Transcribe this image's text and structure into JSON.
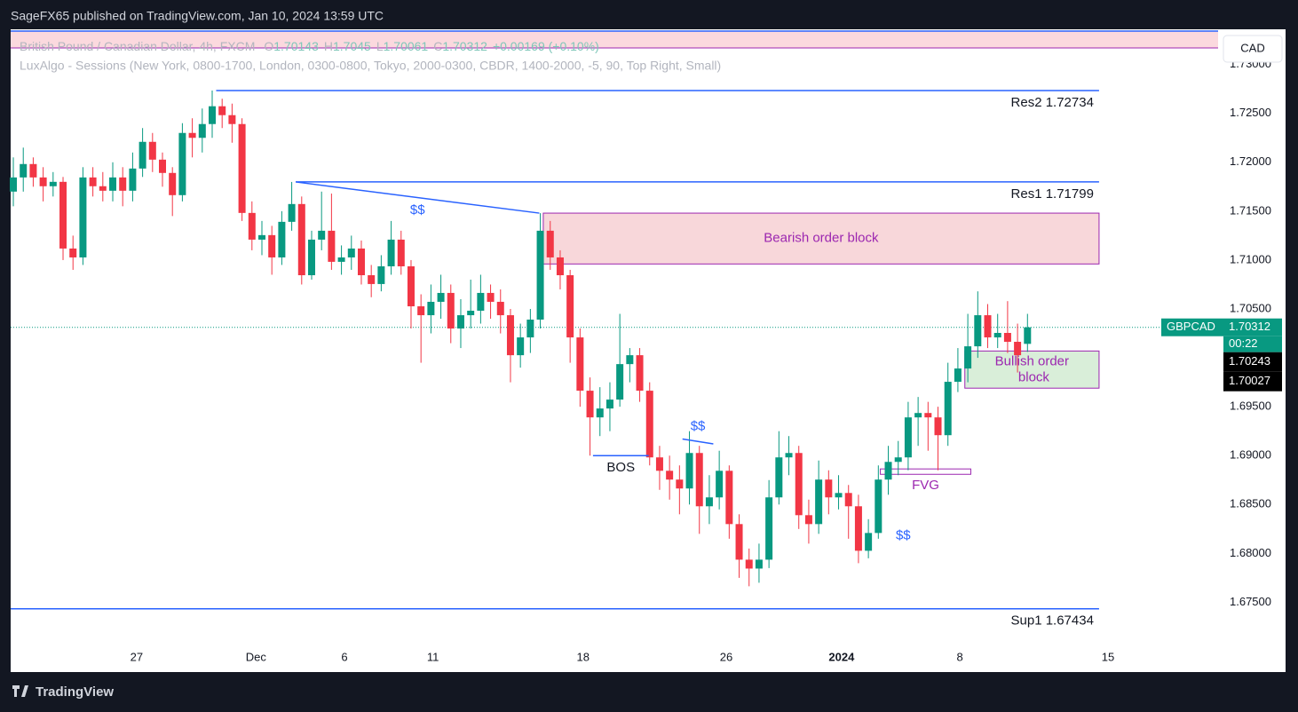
{
  "header": {
    "published": "SageFX65 published on TradingView.com, Jan 10, 2024 13:59 UTC"
  },
  "footer": {
    "brand": "TradingView"
  },
  "currency_button": "CAD",
  "chart_data": {
    "type": "candlestick",
    "symbol_legend": "British Pound / Canadian Dollar, 4h, FXCM",
    "ohlc_keys": [
      "O",
      "H",
      "L",
      "C"
    ],
    "change_text": "+0.00169 (+0.10%)",
    "indicator_legend": "LuxAlgo - Sessions (New York, 0800-1700, London, 0300-0800, Tokyo, 2000-0300, CBDR, 1400-2000, -5, 90, Top Right, Small)",
    "up_color": "#089981",
    "down_color": "#f23645",
    "ohlc": [
      [
        1.717,
        1.7205,
        1.7155,
        1.71845
      ],
      [
        1.71845,
        1.7215,
        1.717,
        1.71982
      ],
      [
        1.71982,
        1.7205,
        1.7175,
        1.71845
      ],
      [
        1.71845,
        1.7195,
        1.716,
        1.71755
      ],
      [
        1.71755,
        1.719,
        1.7165,
        1.718
      ],
      [
        1.718,
        1.7185,
        1.71,
        1.71118
      ],
      [
        1.71118,
        1.7125,
        1.709,
        1.71027
      ],
      [
        1.71027,
        1.7195,
        1.7095,
        1.71845
      ],
      [
        1.71845,
        1.7195,
        1.7165,
        1.71755
      ],
      [
        1.71755,
        1.719,
        1.716,
        1.71709
      ],
      [
        1.71709,
        1.72,
        1.716,
        1.71845
      ],
      [
        1.71845,
        1.7195,
        1.7155,
        1.71709
      ],
      [
        1.71709,
        1.721,
        1.716,
        1.71936
      ],
      [
        1.71936,
        1.7235,
        1.7185,
        1.72209
      ],
      [
        1.72209,
        1.723,
        1.719,
        1.72027
      ],
      [
        1.72027,
        1.721,
        1.7175,
        1.71891
      ],
      [
        1.71891,
        1.7195,
        1.7145,
        1.71664
      ],
      [
        1.71664,
        1.724,
        1.716,
        1.723
      ],
      [
        1.723,
        1.7245,
        1.7205,
        1.7225
      ],
      [
        1.7225,
        1.7255,
        1.721,
        1.72391
      ],
      [
        1.72391,
        1.72734,
        1.7225,
        1.72573
      ],
      [
        1.72573,
        1.7265,
        1.7235,
        1.72482
      ],
      [
        1.72482,
        1.726,
        1.722,
        1.72391
      ],
      [
        1.72391,
        1.7245,
        1.714,
        1.71482
      ],
      [
        1.71482,
        1.716,
        1.711,
        1.71209
      ],
      [
        1.71209,
        1.714,
        1.7105,
        1.71255
      ],
      [
        1.71255,
        1.7135,
        1.7085,
        1.71027
      ],
      [
        1.71027,
        1.715,
        1.7095,
        1.71391
      ],
      [
        1.71391,
        1.71799,
        1.713,
        1.71573
      ],
      [
        1.71573,
        1.7165,
        1.7075,
        1.70845
      ],
      [
        1.70845,
        1.713,
        1.708,
        1.71209
      ],
      [
        1.71209,
        1.717,
        1.711,
        1.713
      ],
      [
        1.713,
        1.7168,
        1.709,
        1.70982
      ],
      [
        1.70982,
        1.7115,
        1.7085,
        1.71027
      ],
      [
        1.71027,
        1.7125,
        1.709,
        1.71118
      ],
      [
        1.71118,
        1.712,
        1.7075,
        1.70845
      ],
      [
        1.70845,
        1.7095,
        1.7062,
        1.70755
      ],
      [
        1.70755,
        1.7105,
        1.7068,
        1.70936
      ],
      [
        1.70936,
        1.714,
        1.7085,
        1.71209
      ],
      [
        1.71209,
        1.713,
        1.7085,
        1.70936
      ],
      [
        1.70936,
        1.71,
        1.703,
        1.70527
      ],
      [
        1.70527,
        1.7065,
        1.6995,
        1.70436
      ],
      [
        1.70436,
        1.7075,
        1.7025,
        1.70573
      ],
      [
        1.70573,
        1.7085,
        1.704,
        1.70664
      ],
      [
        1.70664,
        1.7075,
        1.7015,
        1.703
      ],
      [
        1.703,
        1.706,
        1.701,
        1.70436
      ],
      [
        1.70436,
        1.708,
        1.703,
        1.70482
      ],
      [
        1.70482,
        1.7085,
        1.7035,
        1.70664
      ],
      [
        1.70664,
        1.7075,
        1.704,
        1.70573
      ],
      [
        1.70573,
        1.707,
        1.7025,
        1.70436
      ],
      [
        1.70436,
        1.705,
        1.6975,
        1.70027
      ],
      [
        1.70027,
        1.7035,
        1.699,
        1.70209
      ],
      [
        1.70209,
        1.705,
        1.7005,
        1.70391
      ],
      [
        1.70391,
        1.7148,
        1.703,
        1.713
      ],
      [
        1.713,
        1.714,
        1.709,
        1.71027
      ],
      [
        1.71027,
        1.711,
        1.707,
        1.70845
      ],
      [
        1.70845,
        1.709,
        1.6995,
        1.70209
      ],
      [
        1.70209,
        1.703,
        1.695,
        1.69664
      ],
      [
        1.69664,
        1.698,
        1.69,
        1.69391
      ],
      [
        1.69391,
        1.697,
        1.692,
        1.69482
      ],
      [
        1.69482,
        1.6975,
        1.6925,
        1.69573
      ],
      [
        1.69573,
        1.7045,
        1.695,
        1.69936
      ],
      [
        1.69936,
        1.701,
        1.6975,
        1.70027
      ],
      [
        1.70027,
        1.701,
        1.6955,
        1.69664
      ],
      [
        1.69664,
        1.6975,
        1.689,
        1.68982
      ],
      [
        1.68982,
        1.691,
        1.6865,
        1.68845
      ],
      [
        1.68845,
        1.69,
        1.6855,
        1.68755
      ],
      [
        1.68755,
        1.689,
        1.684,
        1.68664
      ],
      [
        1.68664,
        1.6925,
        1.685,
        1.69027
      ],
      [
        1.69027,
        1.691,
        1.682,
        1.68482
      ],
      [
        1.68482,
        1.688,
        1.683,
        1.68573
      ],
      [
        1.68573,
        1.6905,
        1.6845,
        1.68845
      ],
      [
        1.68845,
        1.689,
        1.6815,
        1.683
      ],
      [
        1.683,
        1.684,
        1.6775,
        1.67936
      ],
      [
        1.67936,
        1.6805,
        1.67664,
        1.67845
      ],
      [
        1.67845,
        1.681,
        1.677,
        1.67936
      ],
      [
        1.67936,
        1.6875,
        1.6785,
        1.68573
      ],
      [
        1.68573,
        1.6925,
        1.685,
        1.68982
      ],
      [
        1.68982,
        1.692,
        1.688,
        1.69027
      ],
      [
        1.69027,
        1.691,
        1.6825,
        1.68391
      ],
      [
        1.68391,
        1.6855,
        1.681,
        1.683
      ],
      [
        1.683,
        1.6895,
        1.682,
        1.68755
      ],
      [
        1.68755,
        1.6885,
        1.684,
        1.68573
      ],
      [
        1.68573,
        1.688,
        1.6845,
        1.68618
      ],
      [
        1.68618,
        1.687,
        1.6815,
        1.68482
      ],
      [
        1.68482,
        1.686,
        1.679,
        1.68027
      ],
      [
        1.68027,
        1.6835,
        1.6795,
        1.68209
      ],
      [
        1.68209,
        1.689,
        1.6815,
        1.68755
      ],
      [
        1.68755,
        1.691,
        1.686,
        1.68936
      ],
      [
        1.68936,
        1.6915,
        1.688,
        1.68982
      ],
      [
        1.68982,
        1.6955,
        1.6885,
        1.69391
      ],
      [
        1.69391,
        1.696,
        1.691,
        1.69436
      ],
      [
        1.69436,
        1.6955,
        1.6905,
        1.69391
      ],
      [
        1.69391,
        1.695,
        1.6885,
        1.69209
      ],
      [
        1.69209,
        1.6995,
        1.691,
        1.69755
      ],
      [
        1.69755,
        1.701,
        1.6965,
        1.69891
      ],
      [
        1.69891,
        1.7045,
        1.6975,
        1.70118
      ],
      [
        1.70118,
        1.7068,
        1.7,
        1.70436
      ],
      [
        1.70436,
        1.7055,
        1.701,
        1.70209
      ],
      [
        1.70209,
        1.7045,
        1.701,
        1.70255
      ],
      [
        1.70255,
        1.7058,
        1.7005,
        1.70164
      ],
      [
        1.70164,
        1.7035,
        1.6985,
        1.70027
      ],
      [
        1.70143,
        1.7045,
        1.70061,
        1.70312
      ]
    ],
    "xlim": [
      -0.27,
      120.1
    ],
    "ylim": [
      1.6705,
      1.7336
    ],
    "xticks": [
      {
        "value": 12.4,
        "label": "27"
      },
      {
        "value": 24.4,
        "label": "Dec"
      },
      {
        "value": 33.3,
        "label": "6"
      },
      {
        "value": 42.2,
        "label": "11"
      },
      {
        "value": 57.3,
        "label": "18"
      },
      {
        "value": 71.7,
        "label": "26"
      },
      {
        "value": 83.3,
        "label": "2024"
      },
      {
        "value": 95.2,
        "label": "8"
      },
      {
        "value": 110.1,
        "label": "15"
      }
    ],
    "bold_xtick": "2024",
    "yticks": [
      {
        "value": 1.675,
        "label": "1.67500"
      },
      {
        "value": 1.68,
        "label": "1.68000"
      },
      {
        "value": 1.685,
        "label": "1.68500"
      },
      {
        "value": 1.69,
        "label": "1.69000"
      },
      {
        "value": 1.695,
        "label": "1.69500"
      },
      {
        "value": 1.7,
        "label": "1.70000"
      },
      {
        "value": 1.705,
        "label": "1.70500"
      },
      {
        "value": 1.71,
        "label": "1.71000"
      },
      {
        "value": 1.715,
        "label": "1.71500"
      },
      {
        "value": 1.72,
        "label": "1.72000"
      },
      {
        "value": 1.725,
        "label": "1.72500"
      },
      {
        "value": 1.73,
        "label": "1.73000"
      }
    ],
    "last_price": {
      "name": "GBPCAD",
      "value": 1.70312,
      "countdown": "00:22",
      "color": "#089981"
    },
    "price_tags": [
      {
        "value": 1.70243,
        "label": "1.70243"
      },
      {
        "value": 1.70027,
        "label": "1.70027"
      }
    ],
    "levels": [
      {
        "label": "Res2 1.72734",
        "value": 1.72734,
        "from": 20.4,
        "to": 109.2
      },
      {
        "label": "Res1 1.71799",
        "value": 1.71799,
        "from": 28.4,
        "to": 109.2
      },
      {
        "label": "Sup1 1.67434",
        "value": 1.67434,
        "from": -0.27,
        "to": 109.2
      }
    ],
    "level_color": "#2962ff",
    "boxes": [
      {
        "label": "Bearish order block",
        "top": 1.7148,
        "bottom": 1.7096,
        "from": 53.3,
        "to": 109.2,
        "fill": "#f8d7da",
        "stroke": "#9c27b0"
      },
      {
        "label": "Bullish order block",
        "top": 1.7007,
        "bottom": 1.6969,
        "from": 95.7,
        "to": 109.2,
        "fill": "#d9eed9",
        "stroke": "#9c27b0"
      },
      {
        "label": "FVG",
        "top": 1.68864,
        "bottom": 1.68809,
        "from": 87.2,
        "to": 96.3,
        "fill": "#ffffff",
        "stroke": "#9c27b0"
      }
    ],
    "lines": [
      {
        "label": "$$",
        "from": [
          28.4,
          1.71799
        ],
        "to": [
          52.9,
          1.7148
        ],
        "color": "#2962ff"
      },
      {
        "label": "$$",
        "from": [
          67.3,
          1.6917
        ],
        "to": [
          70.4,
          1.6912
        ],
        "color": "#2962ff"
      },
      {
        "label": "BOS",
        "from": [
          58.3,
          1.69
        ],
        "to": [
          63.9,
          1.69
        ],
        "color": "#2962ff"
      }
    ],
    "marks": [
      {
        "label": "$$",
        "x": 89.5,
        "y": 1.6818,
        "color": "#2962ff"
      }
    ]
  }
}
